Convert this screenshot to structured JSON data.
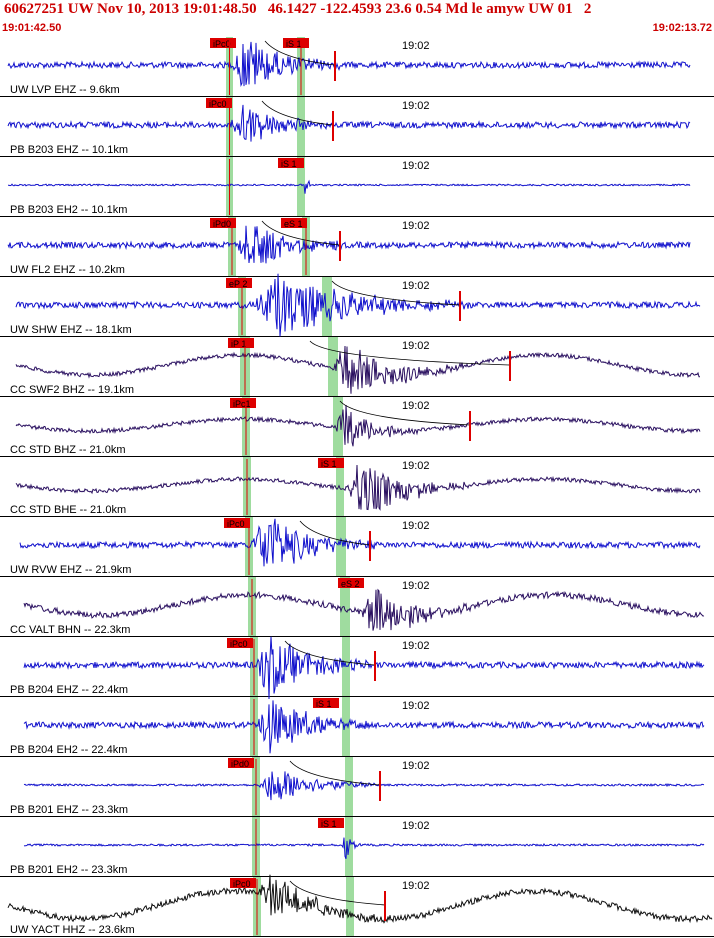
{
  "header": {
    "title": "60627251 UW Nov 10, 2013 19:01:48.50   46.1427 -122.4593 23.6 0.54 Md le amyw UW 01   2",
    "start_time": "19:01:42.50",
    "end_time": "19:02:13.72"
  },
  "chart_data": {
    "type": "line",
    "title": "60627251 UW Nov 10, 2013 19:01:48.50   46.1427 -122.4593 23.6 0.54 Md le amyw UW 01   2",
    "x_unit": "time",
    "xlim": [
      "19:01:42.50",
      "19:02:13.72"
    ],
    "time_mark": "19:02",
    "colors": {
      "blue": "#1010cc",
      "purple": "#2a1060",
      "black": "#101010",
      "pick": "#dd0000",
      "window": "#9fdc9f"
    },
    "traces": [
      {
        "label": "UW LVP EHZ -- 9.6km",
        "color": "blue",
        "picks": [
          {
            "label": "iPc0"
          },
          {
            "label": "iS 1"
          }
        ]
      },
      {
        "label": "PB B203 EHZ -- 10.1km",
        "color": "blue",
        "picks": [
          {
            "label": "iPc0"
          }
        ]
      },
      {
        "label": "PB B203 EH2 -- 10.1km",
        "color": "blue",
        "picks": [
          {
            "label": "iS 1"
          }
        ]
      },
      {
        "label": "UW FL2 EHZ -- 10.2km",
        "color": "blue",
        "picks": [
          {
            "label": "iPd0"
          },
          {
            "label": "eS 1"
          }
        ]
      },
      {
        "label": "UW SHW EHZ -- 18.1km",
        "color": "blue",
        "picks": [
          {
            "label": "eP 2"
          }
        ]
      },
      {
        "label": "CC SWF2 BHZ -- 19.1km",
        "color": "purple",
        "picks": [
          {
            "label": "iP 1"
          }
        ]
      },
      {
        "label": "CC STD BHZ -- 21.0km",
        "color": "purple",
        "picks": [
          {
            "label": "iPc1"
          }
        ]
      },
      {
        "label": "CC STD BHE -- 21.0km",
        "color": "purple",
        "picks": [
          {
            "label": "iS 1"
          }
        ]
      },
      {
        "label": "UW RVW EHZ -- 21.9km",
        "color": "blue",
        "picks": [
          {
            "label": "iPc0"
          }
        ]
      },
      {
        "label": "CC VALT BHN -- 22.3km",
        "color": "purple",
        "picks": [
          {
            "label": "eS 2"
          }
        ]
      },
      {
        "label": "PB B204 EHZ -- 22.4km",
        "color": "blue",
        "picks": [
          {
            "label": "iPc0"
          }
        ]
      },
      {
        "label": "PB B204 EH2 -- 22.4km",
        "color": "blue",
        "picks": [
          {
            "label": "iS 1"
          }
        ]
      },
      {
        "label": "PB B201 EHZ -- 23.3km",
        "color": "blue",
        "picks": [
          {
            "label": "iPd0"
          }
        ]
      },
      {
        "label": "PB B201 EH2 -- 23.3km",
        "color": "blue",
        "picks": [
          {
            "label": "iS 1"
          }
        ]
      },
      {
        "label": "UW YACT HHZ -- 23.6km",
        "color": "black",
        "picks": [
          {
            "label": "iPc0"
          }
        ]
      }
    ]
  }
}
